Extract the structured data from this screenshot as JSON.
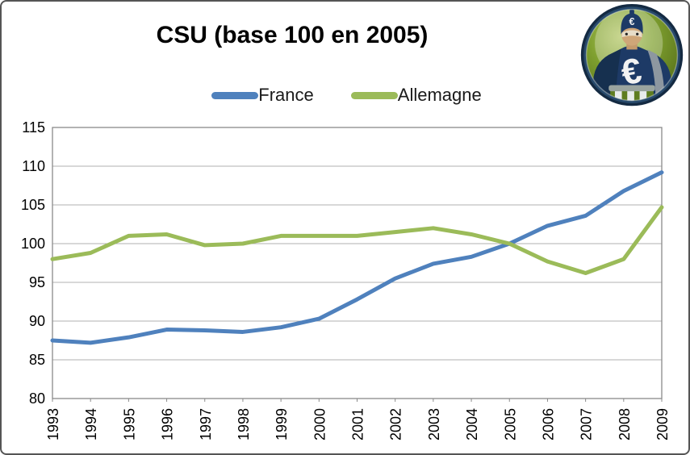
{
  "badge": {
    "icon": "captain-euro-mascot-icon",
    "euro_symbol": "€",
    "ring_color": "#1e3a5f",
    "bg_color": "#6f8c26",
    "suit_color": "#1d3a66",
    "emblem_color": "#f2f2f2"
  },
  "chart_data": {
    "type": "line",
    "title": "CSU (base 100 en 2005)",
    "categories": [
      "1993",
      "1994",
      "1995",
      "1996",
      "1997",
      "1998",
      "1999",
      "2000",
      "2001",
      "2002",
      "2003",
      "2004",
      "2005",
      "2006",
      "2007",
      "2008",
      "2009"
    ],
    "series": [
      {
        "name": "France",
        "color": "#4F81BD",
        "values": [
          87.5,
          87.2,
          87.9,
          88.9,
          88.8,
          88.6,
          89.2,
          90.3,
          92.8,
          95.5,
          97.4,
          98.3,
          100.0,
          102.3,
          103.6,
          106.8,
          109.2
        ]
      },
      {
        "name": "Allemagne",
        "color": "#9BBB59",
        "values": [
          98.0,
          98.8,
          101.0,
          101.2,
          99.8,
          100.0,
          101.0,
          101.0,
          101.0,
          101.5,
          102.0,
          101.2,
          100.0,
          97.7,
          96.2,
          98.0,
          104.7
        ]
      }
    ],
    "xlabel": "",
    "ylabel": "",
    "ylim": [
      80,
      115
    ],
    "ytick_step": 5,
    "y_ticks": [
      80,
      85,
      90,
      95,
      100,
      105,
      110,
      115
    ],
    "grid": true,
    "legend_position": "top",
    "line_width": 5
  }
}
